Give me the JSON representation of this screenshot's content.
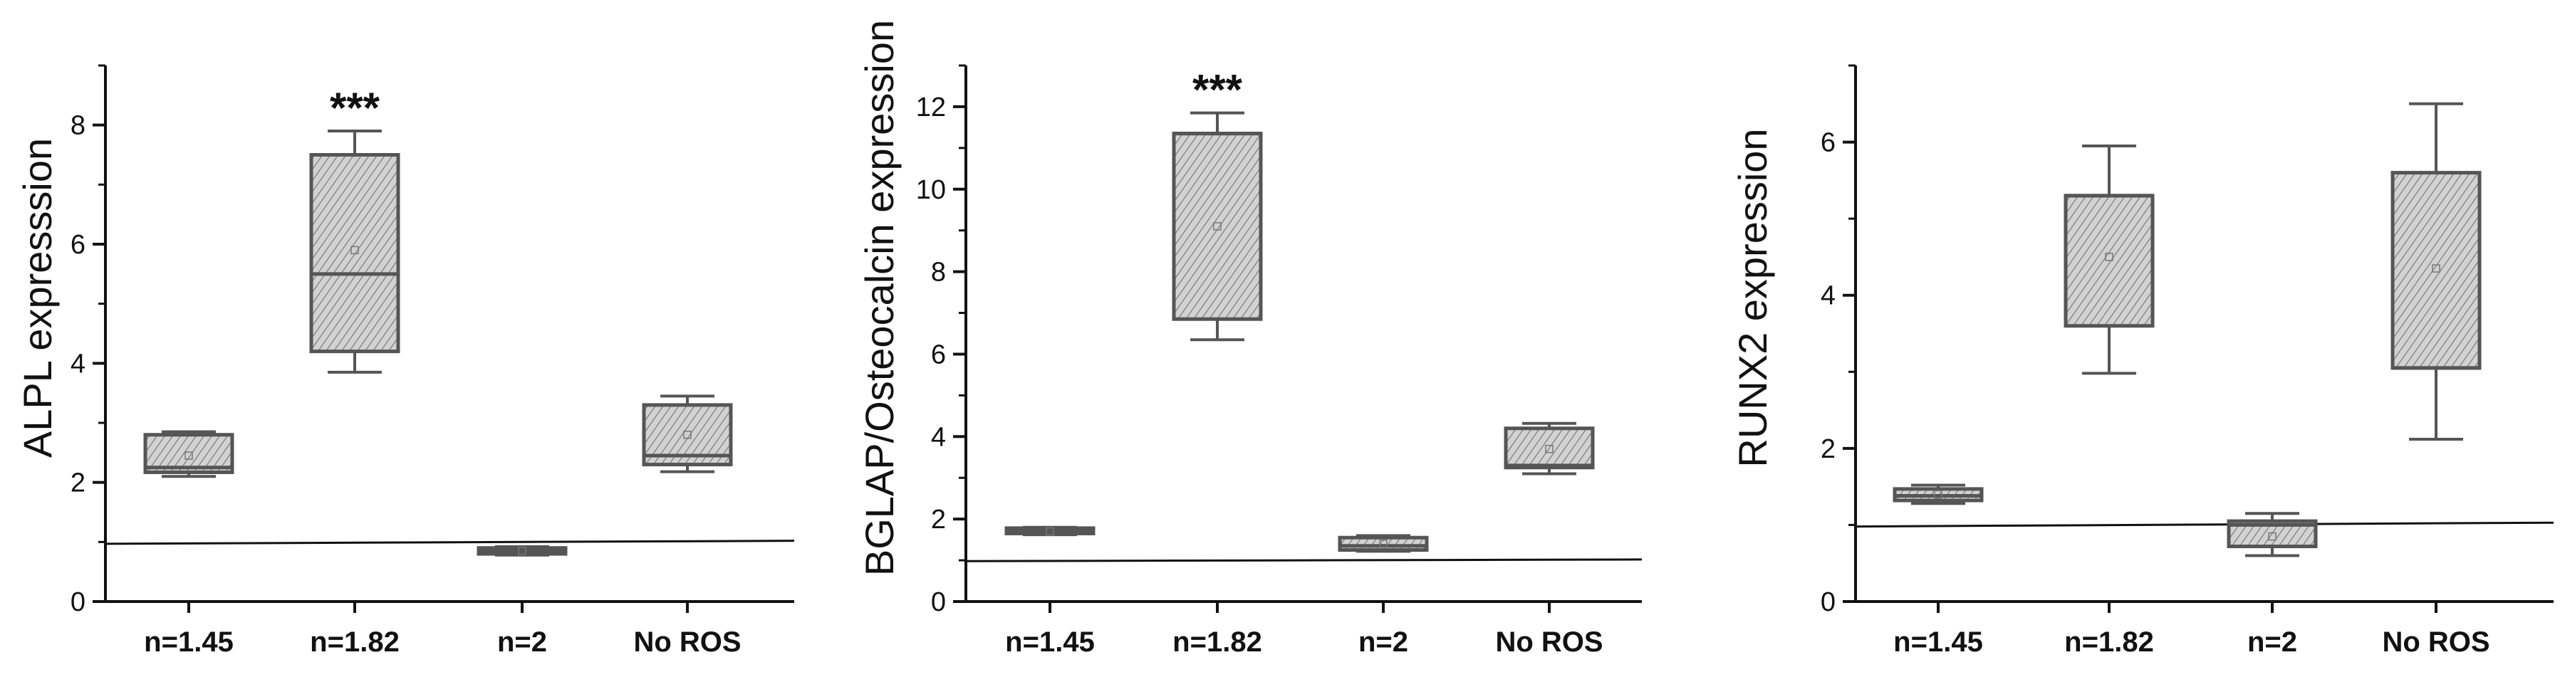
{
  "colors": {
    "axis": "#111111",
    "box_fill": "#cfcfcf",
    "box_hatch": "#8a8a8a",
    "box_edge": "#555555",
    "reference_line": "#111111"
  },
  "chart_data": [
    {
      "type": "box",
      "ylabel": "ALPL expresssion",
      "ylim": [
        0,
        9
      ],
      "yticks": [
        0,
        2,
        4,
        6,
        8
      ],
      "categories": [
        "n=1.45",
        "n=1.82",
        "n=2",
        "No ROS"
      ],
      "boxes": [
        {
          "whisker_low": 2.1,
          "q1": 2.17,
          "median": 2.25,
          "q3": 2.8,
          "whisker_high": 2.85,
          "mean": 2.45
        },
        {
          "whisker_low": 3.85,
          "q1": 4.2,
          "median": 5.5,
          "q3": 7.5,
          "whisker_high": 7.9,
          "mean": 5.9
        },
        {
          "whisker_low": 0.78,
          "q1": 0.8,
          "median": 0.85,
          "q3": 0.9,
          "whisker_high": 0.92,
          "mean": 0.85
        },
        {
          "whisker_low": 2.18,
          "q1": 2.3,
          "median": 2.45,
          "q3": 3.3,
          "whisker_high": 3.45,
          "mean": 2.8
        }
      ],
      "reference_line": {
        "y_start": 0.97,
        "y_end": 1.02
      },
      "annotations": [
        {
          "category": "n=1.82",
          "text": "***"
        }
      ]
    },
    {
      "type": "box",
      "ylabel": "BGLAP/Osteocalcin expression",
      "ylim": [
        0,
        13
      ],
      "yticks": [
        0,
        2,
        4,
        6,
        8,
        10,
        12
      ],
      "categories": [
        "n=1.45",
        "n=1.82",
        "n=2",
        "No ROS"
      ],
      "boxes": [
        {
          "whisker_low": 1.62,
          "q1": 1.65,
          "median": 1.7,
          "q3": 1.78,
          "whisker_high": 1.8,
          "mean": 1.7
        },
        {
          "whisker_low": 6.35,
          "q1": 6.85,
          "median": 11.35,
          "q3": 11.35,
          "whisker_high": 11.85,
          "mean": 9.1
        },
        {
          "whisker_low": 1.22,
          "q1": 1.25,
          "median": 1.35,
          "q3": 1.55,
          "whisker_high": 1.6,
          "mean": 1.4
        },
        {
          "whisker_low": 3.1,
          "q1": 3.25,
          "median": 3.3,
          "q3": 4.2,
          "whisker_high": 4.32,
          "mean": 3.7
        }
      ],
      "reference_line": {
        "y_start": 0.98,
        "y_end": 1.02
      },
      "annotations": [
        {
          "category": "n=1.82",
          "text": "***"
        }
      ]
    },
    {
      "type": "box",
      "ylabel": "RUNX2 expression",
      "ylim": [
        0,
        7
      ],
      "yticks": [
        0,
        2,
        4,
        6
      ],
      "categories": [
        "n=1.45",
        "n=1.82",
        "n=2",
        "No ROS"
      ],
      "boxes": [
        {
          "whisker_low": 1.28,
          "q1": 1.32,
          "median": 1.38,
          "q3": 1.47,
          "whisker_high": 1.52,
          "mean": 1.4
        },
        {
          "whisker_low": 2.98,
          "q1": 3.6,
          "median": 5.3,
          "q3": 5.3,
          "whisker_high": 5.95,
          "mean": 4.5
        },
        {
          "whisker_low": 0.6,
          "q1": 0.72,
          "median": 1.0,
          "q3": 1.05,
          "whisker_high": 1.15,
          "mean": 0.85
        },
        {
          "whisker_low": 2.12,
          "q1": 3.05,
          "median": 3.05,
          "q3": 5.6,
          "whisker_high": 6.5,
          "mean": 4.35
        }
      ],
      "reference_line": {
        "y_start": 0.98,
        "y_end": 1.03
      },
      "annotations": []
    }
  ]
}
